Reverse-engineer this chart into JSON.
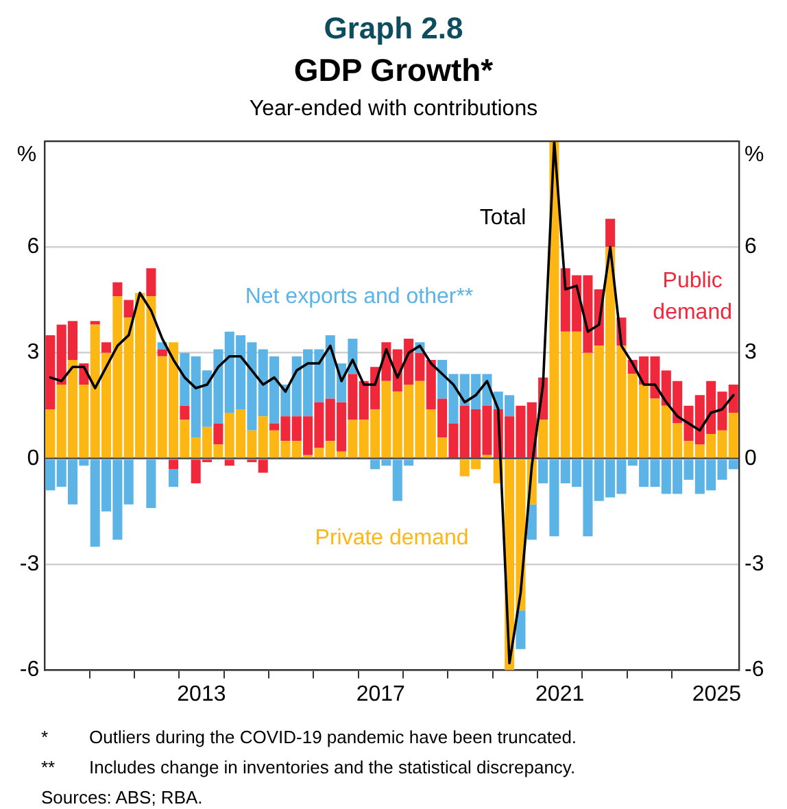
{
  "chart_data": {
    "type": "bar",
    "title": "Graph 2.8",
    "subtitle": "GDP Growth*",
    "legend_title": null,
    "annotations": [
      "Year-ended with contributions",
      "* Outliers during the COVID-19 pandemic have been truncated.",
      "** Includes change in inventories and the statistical discrepancy.",
      "Sources: ABS; RBA."
    ],
    "ylabel": "%",
    "y2label": "%",
    "x": [
      2010.125,
      2010.375,
      2010.625,
      2010.875,
      2011.125,
      2011.375,
      2011.625,
      2011.875,
      2012.125,
      2012.375,
      2012.625,
      2012.875,
      2013.125,
      2013.375,
      2013.625,
      2013.875,
      2014.125,
      2014.375,
      2014.625,
      2014.875,
      2015.125,
      2015.375,
      2015.625,
      2015.875,
      2016.125,
      2016.375,
      2016.625,
      2016.875,
      2017.125,
      2017.375,
      2017.625,
      2017.875,
      2018.125,
      2018.375,
      2018.625,
      2018.875,
      2019.125,
      2019.375,
      2019.625,
      2019.875,
      2020.125,
      2020.375,
      2020.625,
      2020.875,
      2021.125,
      2021.375,
      2021.625,
      2021.875,
      2022.125,
      2022.375,
      2022.625,
      2022.875,
      2023.125,
      2023.375,
      2023.625,
      2023.875,
      2024.125,
      2024.375,
      2024.625,
      2024.875,
      2025.125,
      2025.375
    ],
    "stacked": true,
    "series": [
      {
        "name": "Private demand",
        "color": "#fdb714",
        "values": [
          1.4,
          2.1,
          2.8,
          2.1,
          3.8,
          3.0,
          4.6,
          4.0,
          4.7,
          4.6,
          2.9,
          3.3,
          1.1,
          0.6,
          0.9,
          0.4,
          1.3,
          1.4,
          0.8,
          1.2,
          0.8,
          0.5,
          0.5,
          0.1,
          0.3,
          0.5,
          0.2,
          1.1,
          1.1,
          1.4,
          2.2,
          1.9,
          2.1,
          2.2,
          1.4,
          0.6,
          0,
          -0.5,
          -0.3,
          0.1,
          -0.7,
          -6,
          -4.3,
          -1.3,
          1.1,
          9,
          3.6,
          3.6,
          3.0,
          3.2,
          6.0,
          3.2,
          2.4,
          2.1,
          1.7,
          1.5,
          1.0,
          0.5,
          0.4,
          0.7,
          0.8,
          1.3
        ]
      },
      {
        "name": "Public demand",
        "color": "#f0283c",
        "values": [
          2.1,
          1.7,
          1.1,
          0.6,
          0.1,
          0.3,
          0.4,
          0.5,
          0,
          0.8,
          0.2,
          -0.3,
          0.4,
          -0.7,
          -0.1,
          0.6,
          -0.2,
          0,
          -0.1,
          -0.4,
          0.2,
          0.7,
          0.7,
          1.1,
          1.3,
          1.2,
          1.4,
          1.3,
          1.1,
          1.2,
          1.1,
          1.2,
          1.3,
          0.8,
          1.4,
          1.1,
          1.0,
          1.5,
          1.4,
          1.4,
          1.4,
          1.2,
          1.5,
          1.6,
          1.2,
          0,
          1.8,
          1.6,
          2.2,
          1.6,
          0.8,
          0.8,
          0.4,
          0.8,
          1.2,
          1.0,
          1.2,
          1.0,
          1.4,
          1.5,
          1.1,
          0.8
        ]
      },
      {
        "name": "Net exports and other**",
        "color": "#5bb4e5",
        "values": [
          -0.9,
          -0.8,
          -1.3,
          -0.2,
          -2.5,
          -1.5,
          -2.3,
          -1.3,
          0,
          -1.4,
          0.2,
          -0.5,
          1.5,
          2.3,
          1.6,
          2.1,
          2.3,
          2.1,
          2.5,
          1.9,
          1.9,
          0.9,
          1.7,
          1.9,
          1.5,
          1.8,
          1.1,
          1.0,
          0,
          -0.3,
          -0.2,
          -1.2,
          -0.2,
          0.3,
          0,
          1.1,
          1.4,
          0.9,
          1.0,
          0.9,
          0.5,
          0.6,
          -1.1,
          -1.0,
          -0.7,
          -2.2,
          -0.7,
          -0.8,
          -2.2,
          -1.2,
          -1.1,
          -1.0,
          -0.2,
          -0.8,
          -0.8,
          -1.0,
          -1.0,
          -0.6,
          -1.0,
          -0.9,
          -0.6,
          -0.3
        ]
      },
      {
        "name": "Total",
        "type": "line",
        "color": "#000000",
        "values": [
          2.3,
          2.2,
          2.6,
          2.6,
          2.0,
          2.6,
          3.2,
          3.5,
          4.7,
          4.2,
          3.4,
          2.8,
          2.3,
          2.0,
          2.1,
          2.6,
          2.9,
          2.9,
          2.5,
          2.1,
          2.3,
          1.9,
          2.5,
          2.7,
          2.7,
          3.2,
          2.2,
          2.8,
          2.1,
          2.1,
          3.1,
          2.3,
          3.0,
          3.2,
          2.7,
          2.4,
          2.1,
          1.6,
          1.8,
          2.2,
          1.4,
          -5.8,
          -3.8,
          -0.2,
          2.1,
          9,
          4.8,
          4.9,
          3.6,
          3.8,
          6.0,
          3.2,
          2.7,
          2.1,
          2.1,
          1.6,
          1.2,
          1.0,
          0.8,
          1.3,
          1.4,
          1.8
        ]
      }
    ],
    "xlim": [
      2010,
      2025.5
    ],
    "xticks": [
      {
        "value": 2011,
        "label": null
      },
      {
        "value": 2012,
        "label": null
      },
      {
        "value": 2013,
        "label": null
      },
      {
        "value": 2013.5,
        "label": "2013"
      },
      {
        "value": 2014,
        "label": null
      },
      {
        "value": 2015,
        "label": null
      },
      {
        "value": 2016,
        "label": null
      },
      {
        "value": 2017,
        "label": null
      },
      {
        "value": 2017.5,
        "label": "2017"
      },
      {
        "value": 2018,
        "label": null
      },
      {
        "value": 2019,
        "label": null
      },
      {
        "value": 2020,
        "label": null
      },
      {
        "value": 2021,
        "label": null
      },
      {
        "value": 2021.5,
        "label": "2021"
      },
      {
        "value": 2022,
        "label": null
      },
      {
        "value": 2023,
        "label": null
      },
      {
        "value": 2024,
        "label": null
      },
      {
        "value": 2025,
        "label": "2025"
      }
    ],
    "ylim": [
      -6,
      9
    ],
    "yticks": [
      -6,
      -3,
      0,
      3,
      6
    ],
    "y2lim": [
      -6,
      9
    ],
    "y2ticks": [
      -6,
      -3,
      0,
      3,
      6
    ],
    "grid": "y",
    "legend": false,
    "marker": "none",
    "line_style": "solid"
  }
}
